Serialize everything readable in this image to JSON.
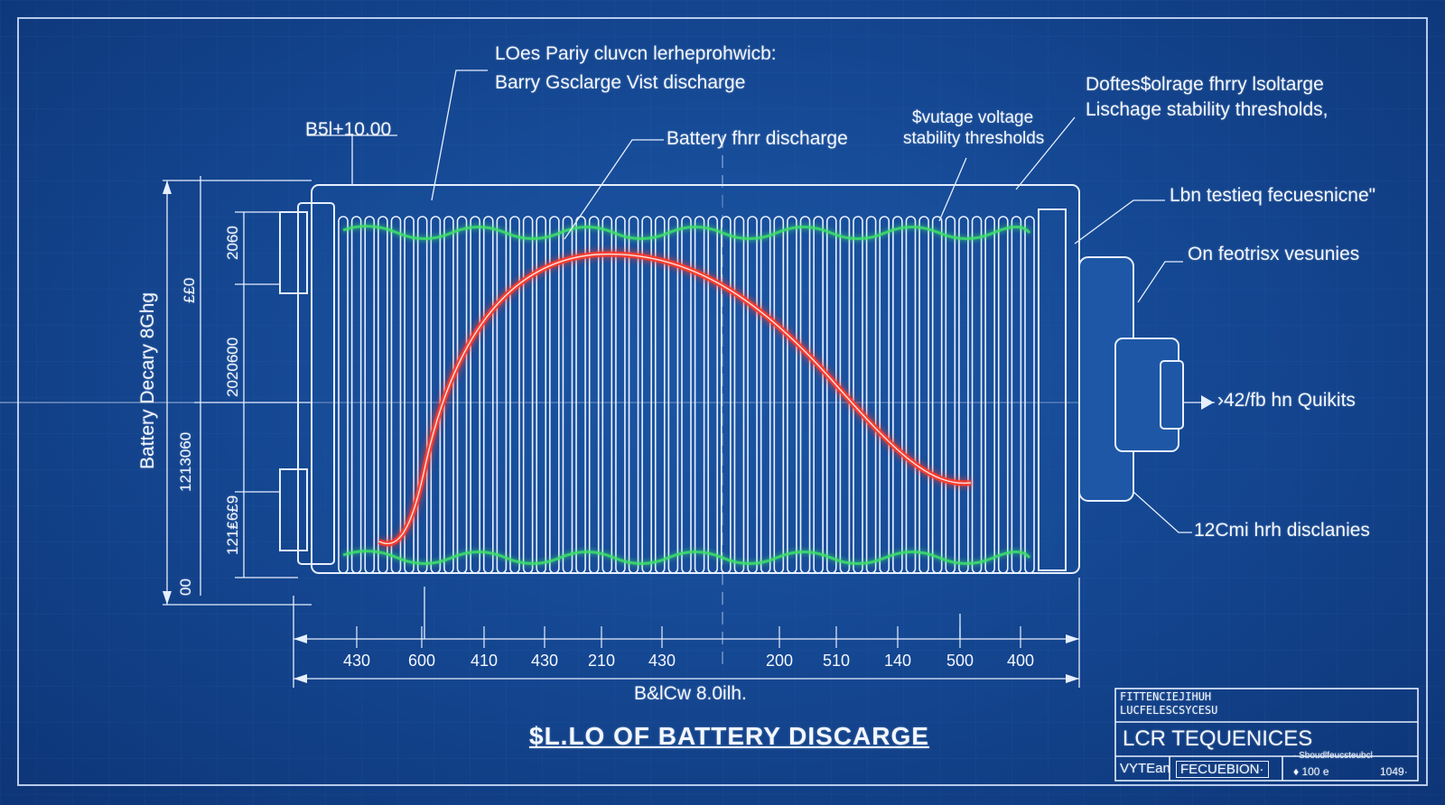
{
  "callouts": {
    "top_line1": "LOes Pariy cluvcn lerheprohwicb:",
    "top_line2": "Barry Gsclarge Vist discharge",
    "dim_top_left": "B5l+10.00",
    "middle": "Battery fhrr discharge",
    "voltage_line1": "$vutage voltage",
    "voltage_line2": "stability thresholds",
    "right_line1": "Doftes$olrage fhrry lsoltarge",
    "right_line2": "Lischage  stability thresholds,",
    "right_testing": "Lbn testieq fecuesnicne\"",
    "right_on": "On feotrisx vesunies",
    "right_arrow": "›42/fb hn Quikits",
    "right_bottom": "12Cmi hrh disclanies"
  },
  "left_axis": {
    "title": "Battery Decary 8Ghg",
    "dims": [
      "2060",
      "2020600",
      "1213060",
      "121₤6£9",
      "££0",
      "00"
    ]
  },
  "bottom_axis": {
    "ticks": [
      "430",
      "600",
      "410",
      "430",
      "210",
      "430",
      "200",
      "510",
      "140",
      "500",
      "400"
    ],
    "caption": "B&lCw 8.0ilh.",
    "title": "$L.LO OF BATTERY DISCARGE"
  },
  "title_block": {
    "header_line1": "FITTENCIEJIHUH",
    "header_line2": "LUCFELESCSYCESU",
    "main": "LCR  TEQUENICES",
    "cell1": "VYTEan",
    "cell2": "FECUEBION·",
    "cell3_line1": "· Sboudlfeucsteubcl",
    "cell3_line2": "♦ 100 e",
    "cell3_line3": "1049·"
  },
  "colors": {
    "background": "#164a96",
    "lines": "#e6efff",
    "curve": "#ff4a3a",
    "glow_green": "#3ee06a"
  },
  "icons": [
    "right-arrow-icon"
  ]
}
